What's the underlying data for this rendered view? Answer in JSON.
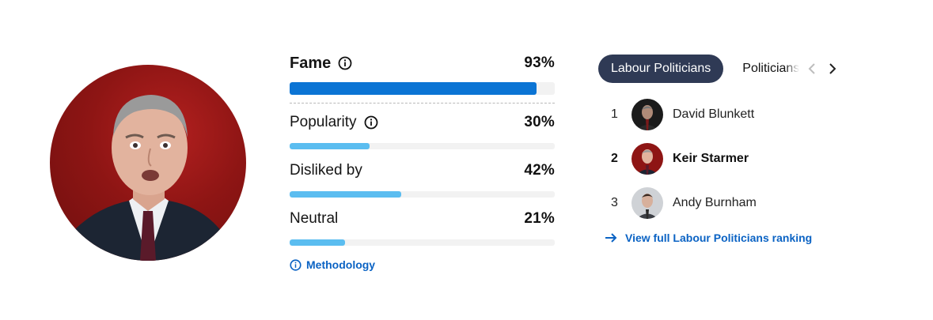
{
  "profile": {
    "photo_icon": "person-portrait"
  },
  "metrics": {
    "fame": {
      "label": "Fame",
      "value": "93%",
      "fraction": 0.93,
      "has_info": true
    },
    "popularity": {
      "label": "Popularity",
      "value": "30%",
      "fraction": 0.3,
      "has_info": true
    },
    "disliked": {
      "label": "Disliked by",
      "value": "42%",
      "fraction": 0.42,
      "has_info": false
    },
    "neutral": {
      "label": "Neutral",
      "value": "21%",
      "fraction": 0.21,
      "has_info": false
    },
    "methodology_label": "Methodology"
  },
  "rankings": {
    "tabs": {
      "active": "Labour Politicians",
      "next": "Politicians"
    },
    "items": [
      {
        "rank": "1",
        "name": "David Blunkett",
        "current": false
      },
      {
        "rank": "2",
        "name": "Keir Starmer",
        "current": true
      },
      {
        "rank": "3",
        "name": "Andy Burnham",
        "current": false
      }
    ],
    "view_full_label": "View full Labour Politicians ranking"
  },
  "colors": {
    "fame_bar": "#0b74d4",
    "sub_bars": "#5bbdf0",
    "track": "#f2f2f2",
    "link": "#0b63c4",
    "tab_active_bg": "#2f3a55"
  }
}
